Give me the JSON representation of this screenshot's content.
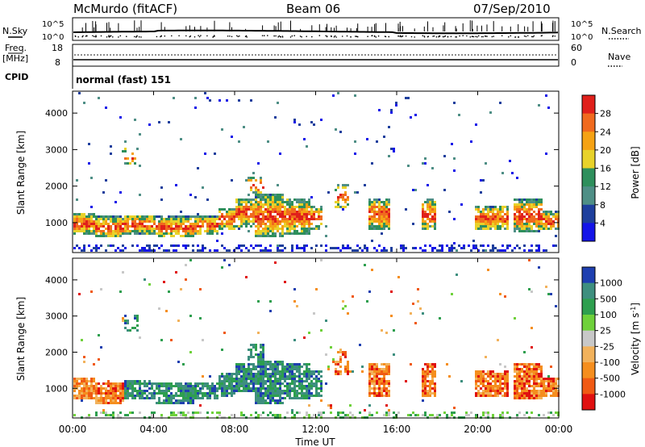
{
  "header": {
    "station": "McMurdo (fitACF)",
    "beam": "Beam 06",
    "date": "07/Sep/2010",
    "cpid_mode": "normal (fast) 151"
  },
  "left_labels": {
    "nsky": "N.Sky",
    "freq": "Freq.",
    "freq_unit": "[MHz]",
    "cpid": "CPID"
  },
  "right_labels": {
    "nsearch": "N.Search",
    "nave": "Nave"
  },
  "small_panels": {
    "noise_ticks": [
      "10^5",
      "10^0"
    ],
    "freq_ticks": [
      "18",
      "8"
    ],
    "nave_ticks": [
      "60",
      "0"
    ]
  },
  "time_axis": {
    "label": "Time UT",
    "ticks": [
      "00:00",
      "04:00",
      "08:00",
      "12:00",
      "16:00",
      "20:00",
      "00:00"
    ]
  },
  "chart_data": [
    {
      "type": "heatmap",
      "name": "power",
      "ylabel": "Slant Range [km]",
      "xlabel": "Time UT",
      "y_ticks": [
        "1000",
        "2000",
        "3000",
        "4000"
      ],
      "ylim": [
        180,
        4600
      ],
      "xlim_hours": [
        0,
        24
      ],
      "colorbar": {
        "label": "Power [dB]",
        "ticks": [
          "28",
          "24",
          "20",
          "16",
          "12",
          "8",
          "4"
        ],
        "colors": [
          "#e0201b",
          "#f06a1e",
          "#f5a214",
          "#e8d22a",
          "#2e8f5c",
          "#4f8f86",
          "#1e3f9d",
          "#1414e8"
        ],
        "range": [
          0,
          32
        ]
      }
    },
    {
      "type": "heatmap",
      "name": "velocity",
      "ylabel": "Slant Range [km]",
      "xlabel": "Time UT",
      "y_ticks": [
        "1000",
        "2000",
        "3000",
        "4000"
      ],
      "ylim": [
        180,
        4600
      ],
      "xlim_hours": [
        0,
        24
      ],
      "colorbar": {
        "label": "Velocity [m s^-1]",
        "ticks": [
          "1000",
          "500",
          "100",
          "25",
          "-25",
          "-100",
          "-500",
          "-1000"
        ],
        "colors": [
          "#1e3fb0",
          "#3e8f7f",
          "#2e9f4f",
          "#6fd13b",
          "#c8c8c8",
          "#f2b25c",
          "#f58e1e",
          "#f05a14",
          "#e01010"
        ]
      }
    }
  ]
}
